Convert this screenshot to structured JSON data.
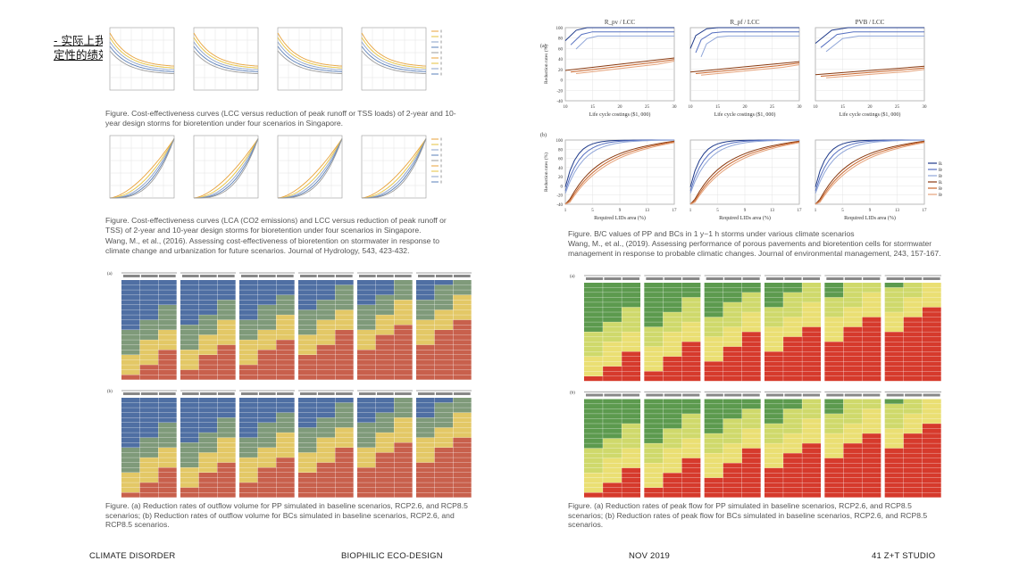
{
  "intro_text": "- 实际上我们很多工作集中在模拟 LID 措施应对外部不确定性的绩效曲线当中。",
  "left": {
    "caption1": "Figure. Cost-effectiveness curves (LCC versus reduction of peak runoff or TSS loads) of 2-year and 10-year design storms for bioretention under four scenarios in Singapore.",
    "caption2": "Figure. Cost-effectiveness curves (LCA (CO2 emissions) and LCC versus reduction of peak runoff or TSS) of 2-year and 10-year design storms for bioretention under four scenarios in Singapore.",
    "reference1": "Wang, M., et al., (2016). Assessing cost-effectiveness of bioretention on stormwater in response to climate change and urbanization for future scenarios. Journal of Hydrology, 543, 423-432.",
    "caption3": "Figure. (a) Reduction rates of outflow volume for PP simulated in baseline scenarios, RCP2.6, and RCP8.5 scenarios; (b) Reduction rates of outflow volume for BCs simulated in baseline scenarios, RCP2.6, and RCP8.5 scenarios."
  },
  "right": {
    "panel_titles": [
      "R_pv / LCC",
      "R_pf / LCC",
      "PVB / LCC"
    ],
    "row_a_label": "(a)",
    "row_b_label": "(b)",
    "y_label": "Reduction rates (%)",
    "x_label_a": "Life cycle costings ($1, 000)",
    "x_label_b": "Required LIDs area (%)",
    "legend": [
      "Baseline",
      "RCP2.6",
      "RCP8.5",
      "Baseline",
      "RCP2.6",
      "RCP8.5"
    ],
    "caption1": "Figure. B/C values of PP and BCs in 1 y−1 h storms under various climate scenarios",
    "reference1": "Wang, M., et al., (2019). Assessing performance of porous pavements and bioretention cells for stormwater management in response to probable climatic changes. Journal of environmental management, 243, 157-167.",
    "caption2": "Figure. (a) Reduction rates of peak flow for PP simulated in baseline scenarios, RCP2.6, and RCP8.5 scenarios; (b) Reduction rates of peak flow for BCs simulated in baseline scenarios, RCP2.6, and RCP8.5 scenarios."
  },
  "chart_data": [
    {
      "type": "line",
      "title": "R_pv / LCC",
      "xlabel": "Life cycle costings ($1, 000)",
      "ylabel": "Reduction rates (%)",
      "xlim": [
        10,
        30
      ],
      "ylim": [
        -40,
        100
      ],
      "series": [
        {
          "name": "Baseline",
          "x": [
            10,
            12,
            14,
            16,
            20,
            25,
            30
          ],
          "y": [
            75,
            95,
            100,
            100,
            100,
            100,
            100
          ]
        },
        {
          "name": "Baseline",
          "x": [
            10,
            15,
            20,
            25,
            30
          ],
          "y": [
            18,
            24,
            30,
            36,
            42
          ]
        }
      ]
    },
    {
      "type": "line",
      "title": "R_pf / LCC",
      "xlabel": "Life cycle costings ($1, 000)",
      "ylabel": "Reduction rates (%)",
      "xlim": [
        10,
        30
      ],
      "ylim": [
        -40,
        100
      ],
      "series": [
        {
          "name": "Baseline",
          "x": [
            10,
            11,
            13,
            15,
            20,
            30
          ],
          "y": [
            60,
            85,
            98,
            100,
            100,
            100
          ]
        },
        {
          "name": "Baseline",
          "x": [
            10,
            15,
            20,
            25,
            30
          ],
          "y": [
            15,
            20,
            25,
            30,
            35
          ]
        }
      ]
    },
    {
      "type": "line",
      "title": "PVB / LCC",
      "xlabel": "Life cycle costings ($1, 000)",
      "ylabel": "Reduction rates (%)",
      "xlim": [
        10,
        30
      ],
      "ylim": [
        -40,
        100
      ],
      "series": [
        {
          "name": "Baseline",
          "x": [
            10,
            13,
            16,
            20,
            30
          ],
          "y": [
            70,
            95,
            100,
            100,
            100
          ]
        },
        {
          "name": "Baseline",
          "x": [
            10,
            15,
            20,
            25,
            30
          ],
          "y": [
            10,
            14,
            18,
            22,
            26
          ]
        }
      ]
    }
  ],
  "footer": {
    "left": "CLIMATE DISORDER",
    "center_left": "BIOPHILIC ECO-DESIGN",
    "center_right": "NOV 2019",
    "right": "41 Z+T STUDIO"
  }
}
